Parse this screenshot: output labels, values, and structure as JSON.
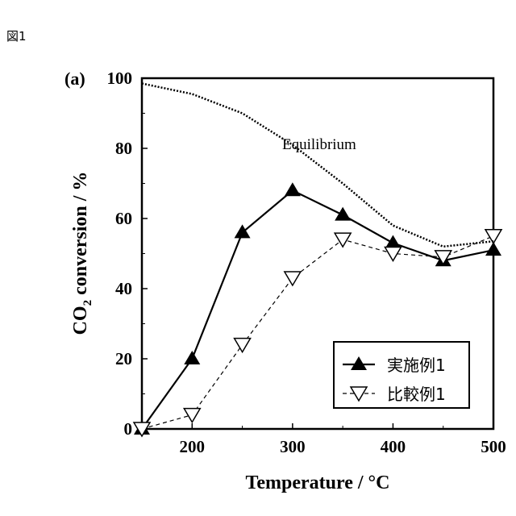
{
  "figure_label": "図1",
  "chart_data": {
    "type": "line",
    "panel_label": "(a)",
    "xlabel": "Temperature / °C",
    "ylabel_main": "CO",
    "ylabel_sub": "2",
    "ylabel_rest": " conversion / %",
    "xlim": [
      150,
      500
    ],
    "ylim": [
      0,
      100
    ],
    "xticks": [
      200,
      300,
      400,
      500
    ],
    "yticks": [
      0,
      20,
      40,
      60,
      80,
      100
    ],
    "grid": false,
    "legend_position": "bottom-right",
    "annotation": "Equilibrium",
    "series": [
      {
        "name": "実施例1",
        "marker": "triangle-up-filled",
        "style": "solid",
        "x": [
          150,
          200,
          250,
          300,
          350,
          400,
          450,
          500
        ],
        "y": [
          0,
          20,
          56,
          68,
          61,
          53,
          48,
          51
        ]
      },
      {
        "name": "比較例1",
        "marker": "triangle-down-open",
        "style": "dashed",
        "x": [
          150,
          200,
          250,
          300,
          350,
          400,
          450,
          500
        ],
        "y": [
          0,
          4,
          24,
          43,
          54,
          50,
          49,
          55
        ]
      },
      {
        "name": "Equilibrium",
        "marker": "none",
        "style": "dotted",
        "x": [
          150,
          200,
          250,
          300,
          350,
          400,
          450,
          500
        ],
        "y": [
          98.5,
          95.5,
          90,
          81,
          70,
          58,
          52,
          53.5
        ]
      }
    ]
  }
}
